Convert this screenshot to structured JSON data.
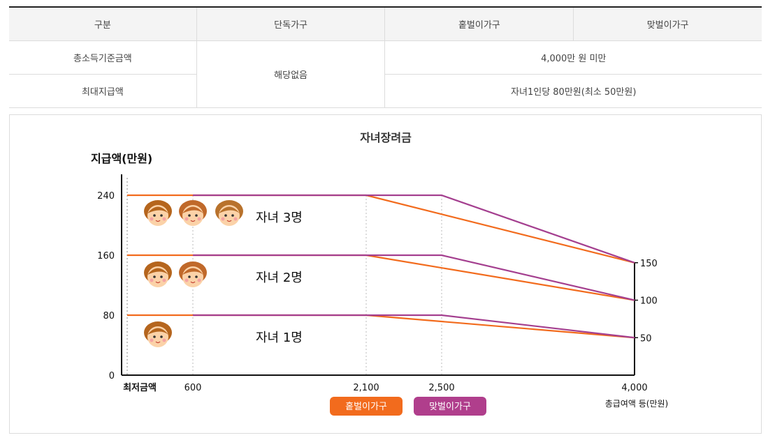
{
  "table": {
    "headers": [
      "구분",
      "단독가구",
      "홑벌이가구",
      "맞벌이가구"
    ],
    "rows": [
      {
        "label": "총소득기준금액",
        "value": "4,000만 원 미만"
      },
      {
        "label": "최대지급액",
        "value": "자녀1인당 80만원(최소 50만원)"
      }
    ],
    "single_note": "해당없음"
  },
  "chart_data": {
    "type": "line",
    "title": "자녀장려금",
    "ylabel": "지급액(만원)",
    "xlabel": "총급여액 등(만원)",
    "x_ticks": [
      "최저금액",
      "600",
      "2,100",
      "2,500",
      "4,000"
    ],
    "y_ticks": [
      "0",
      "80",
      "160",
      "240"
    ],
    "right_ticks": [
      "150",
      "100",
      "50"
    ],
    "child_labels": [
      "자녀 3명",
      "자녀 2명",
      "자녀 1명"
    ],
    "legend": [
      "홑벌이가구",
      "맞벌이가구"
    ],
    "colors": {
      "single_earner": "#f26b1d",
      "dual_earner": "#a43f8f",
      "single_earner_badge": "#f26b1d",
      "dual_earner_badge": "#b03e8c"
    },
    "series": [
      {
        "name": "홑벌이가구",
        "points": {
          "3": [
            [
              0,
              240
            ],
            [
              2100,
              240
            ],
            [
              4000,
              150
            ]
          ],
          "2": [
            [
              0,
              160
            ],
            [
              2100,
              160
            ],
            [
              4000,
              100
            ]
          ],
          "1": [
            [
              0,
              80
            ],
            [
              2100,
              80
            ],
            [
              4000,
              50
            ]
          ]
        }
      },
      {
        "name": "맞벌이가구",
        "points": {
          "3": [
            [
              600,
              240
            ],
            [
              2500,
              240
            ],
            [
              4000,
              150
            ]
          ],
          "2": [
            [
              600,
              160
            ],
            [
              2500,
              160
            ],
            [
              4000,
              100
            ]
          ],
          "1": [
            [
              600,
              80
            ],
            [
              2500,
              80
            ],
            [
              4000,
              50
            ]
          ]
        }
      }
    ]
  }
}
